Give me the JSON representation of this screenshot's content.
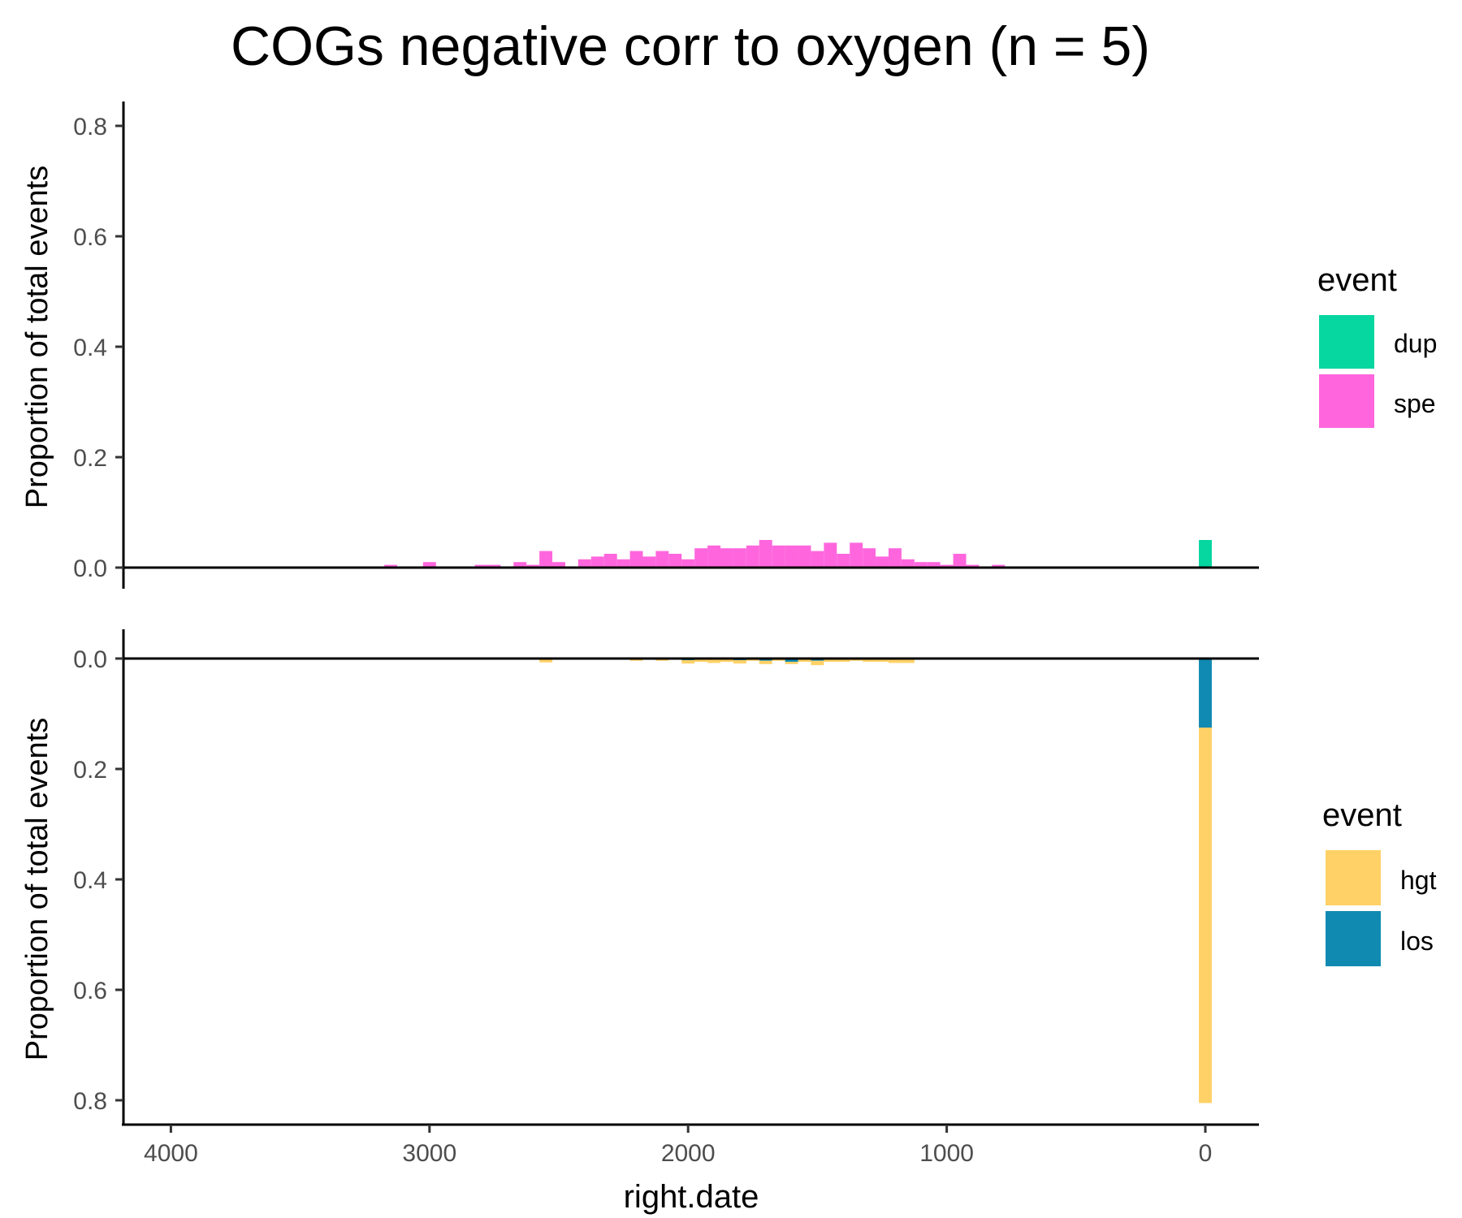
{
  "chart_data": {
    "type": "bar",
    "title": "COGs negative corr to oxygen (n = 5)",
    "xlabel": "right.date",
    "x_reversed": true,
    "xlim": [
      4200,
      -200
    ],
    "x_ticks": [
      4000,
      3000,
      2000,
      1000,
      0
    ],
    "x_tick_labels": [
      "4000",
      "3000",
      "2000",
      "1000",
      "0"
    ],
    "bin_width": 50,
    "panels": [
      {
        "name": "upper",
        "ylabel": "Proportion of total events",
        "direction": "up",
        "ylim": [
          0,
          0.84
        ],
        "y_ticks": [
          0,
          0.2,
          0.4,
          0.6,
          0.8
        ],
        "y_tick_labels": [
          "0.0",
          "0.2",
          "0.4",
          "0.6",
          "0.8"
        ],
        "legend": {
          "title": "event",
          "placement": "right"
        },
        "series": [
          {
            "name": "dup",
            "color": "#06D6A0",
            "x": [
              0
            ],
            "values": [
              0.05
            ]
          },
          {
            "name": "spe",
            "color": "#FF66DD",
            "x": [
              3150,
              3000,
              2800,
              2750,
              2650,
              2600,
              2550,
              2500,
              2400,
              2350,
              2300,
              2250,
              2200,
              2150,
              2100,
              2050,
              2000,
              1950,
              1900,
              1850,
              1800,
              1750,
              1700,
              1650,
              1600,
              1550,
              1500,
              1450,
              1400,
              1350,
              1300,
              1250,
              1200,
              1150,
              1100,
              1050,
              1000,
              950,
              900,
              850,
              800,
              750,
              700,
              650
            ],
            "values": [
              0.005,
              0.01,
              0.005,
              0.005,
              0.01,
              0.005,
              0.03,
              0.01,
              0.015,
              0.02,
              0.025,
              0.015,
              0.03,
              0.02,
              0.03,
              0.025,
              0.015,
              0.035,
              0.04,
              0.035,
              0.035,
              0.04,
              0.05,
              0.04,
              0.04,
              0.04,
              0.03,
              0.045,
              0.025,
              0.045,
              0.035,
              0.02,
              0.035,
              0.015,
              0.01,
              0.01,
              0.005,
              0.025,
              0.005,
              0.0,
              0.005,
              0.0,
              0.0,
              0.0
            ]
          }
        ]
      },
      {
        "name": "lower",
        "ylabel": "Proportion of total events",
        "direction": "down",
        "ylim": [
          0,
          0.84
        ],
        "y_ticks": [
          0,
          0.2,
          0.4,
          0.6,
          0.8
        ],
        "y_tick_labels": [
          "0.0",
          "0.2",
          "0.4",
          "0.6",
          "0.8"
        ],
        "legend": {
          "title": "event",
          "placement": "right"
        },
        "series": [
          {
            "name": "los",
            "color": "#118AB2",
            "x": [
              2000,
              1900,
              1800,
              1700,
              1600,
              1500,
              1400,
              1300,
              1200,
              0
            ],
            "values": [
              0.003,
              0.002,
              0.003,
              0.004,
              0.006,
              0.004,
              0.002,
              0.002,
              0.002,
              0.125
            ]
          },
          {
            "name": "hgt",
            "color": "#FFD166",
            "x": [
              2650,
              2550,
              2200,
              2100,
              2000,
              1950,
              1900,
              1850,
              1800,
              1750,
              1700,
              1650,
              1600,
              1550,
              1500,
              1450,
              1400,
              1350,
              1300,
              1250,
              1200,
              1150,
              1100,
              0
            ],
            "values": [
              0.002,
              0.007,
              0.004,
              0.004,
              0.006,
              0.006,
              0.006,
              0.006,
              0.006,
              0.004,
              0.006,
              0.004,
              0.004,
              0.006,
              0.008,
              0.006,
              0.004,
              0.004,
              0.004,
              0.006,
              0.006,
              0.008,
              0.002,
              0.68
            ]
          }
        ]
      }
    ]
  }
}
